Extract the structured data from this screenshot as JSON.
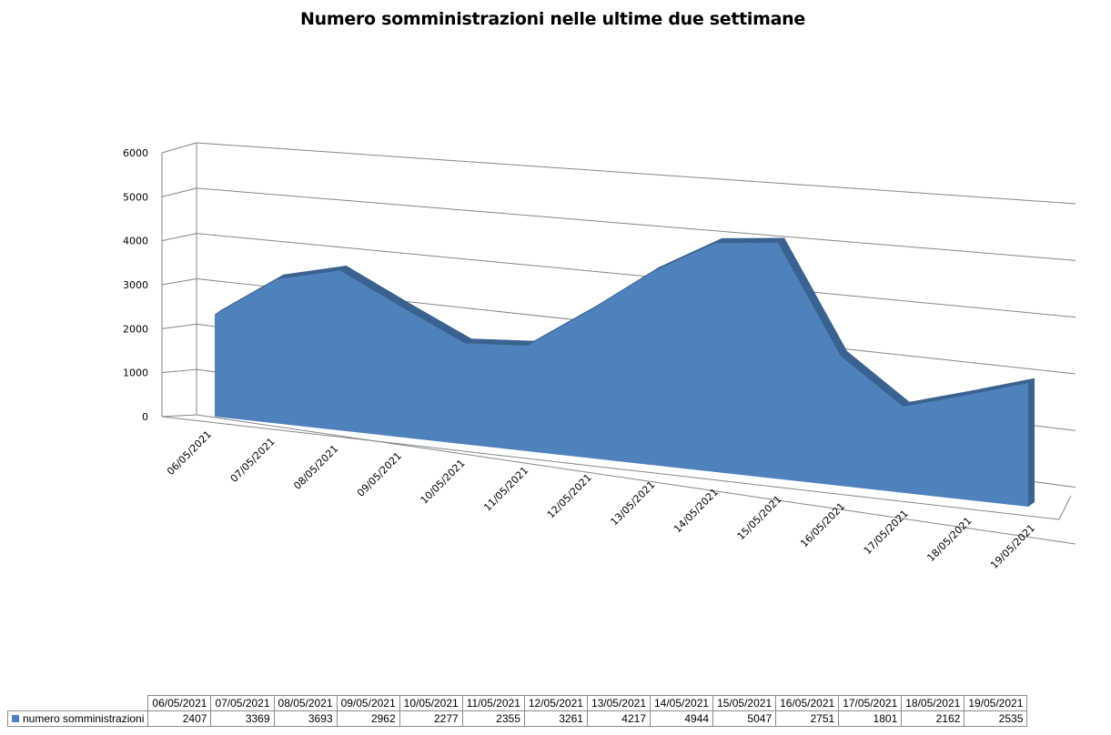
{
  "chart_data": {
    "type": "area",
    "title": "Numero somministrazioni nelle ultime due settimane",
    "categories": [
      "06/05/2021",
      "07/05/2021",
      "08/05/2021",
      "09/05/2021",
      "10/05/2021",
      "11/05/2021",
      "12/05/2021",
      "13/05/2021",
      "14/05/2021",
      "15/05/2021",
      "16/05/2021",
      "17/05/2021",
      "18/05/2021",
      "19/05/2021"
    ],
    "series": [
      {
        "name": "numero somministrazioni",
        "values": [
          2407,
          3369,
          3693,
          2962,
          2277,
          2355,
          3261,
          4217,
          4944,
          5047,
          2751,
          1801,
          2162,
          2535
        ]
      }
    ],
    "ylim": [
      0,
      6000
    ],
    "yticks": [
      0,
      1000,
      2000,
      3000,
      4000,
      5000,
      6000
    ],
    "grid": true,
    "view": "3d",
    "legend": "data-table-bottom",
    "colors": {
      "area": "#4f81bd",
      "area_edge": "#3a6290",
      "grid": "#868686"
    }
  }
}
